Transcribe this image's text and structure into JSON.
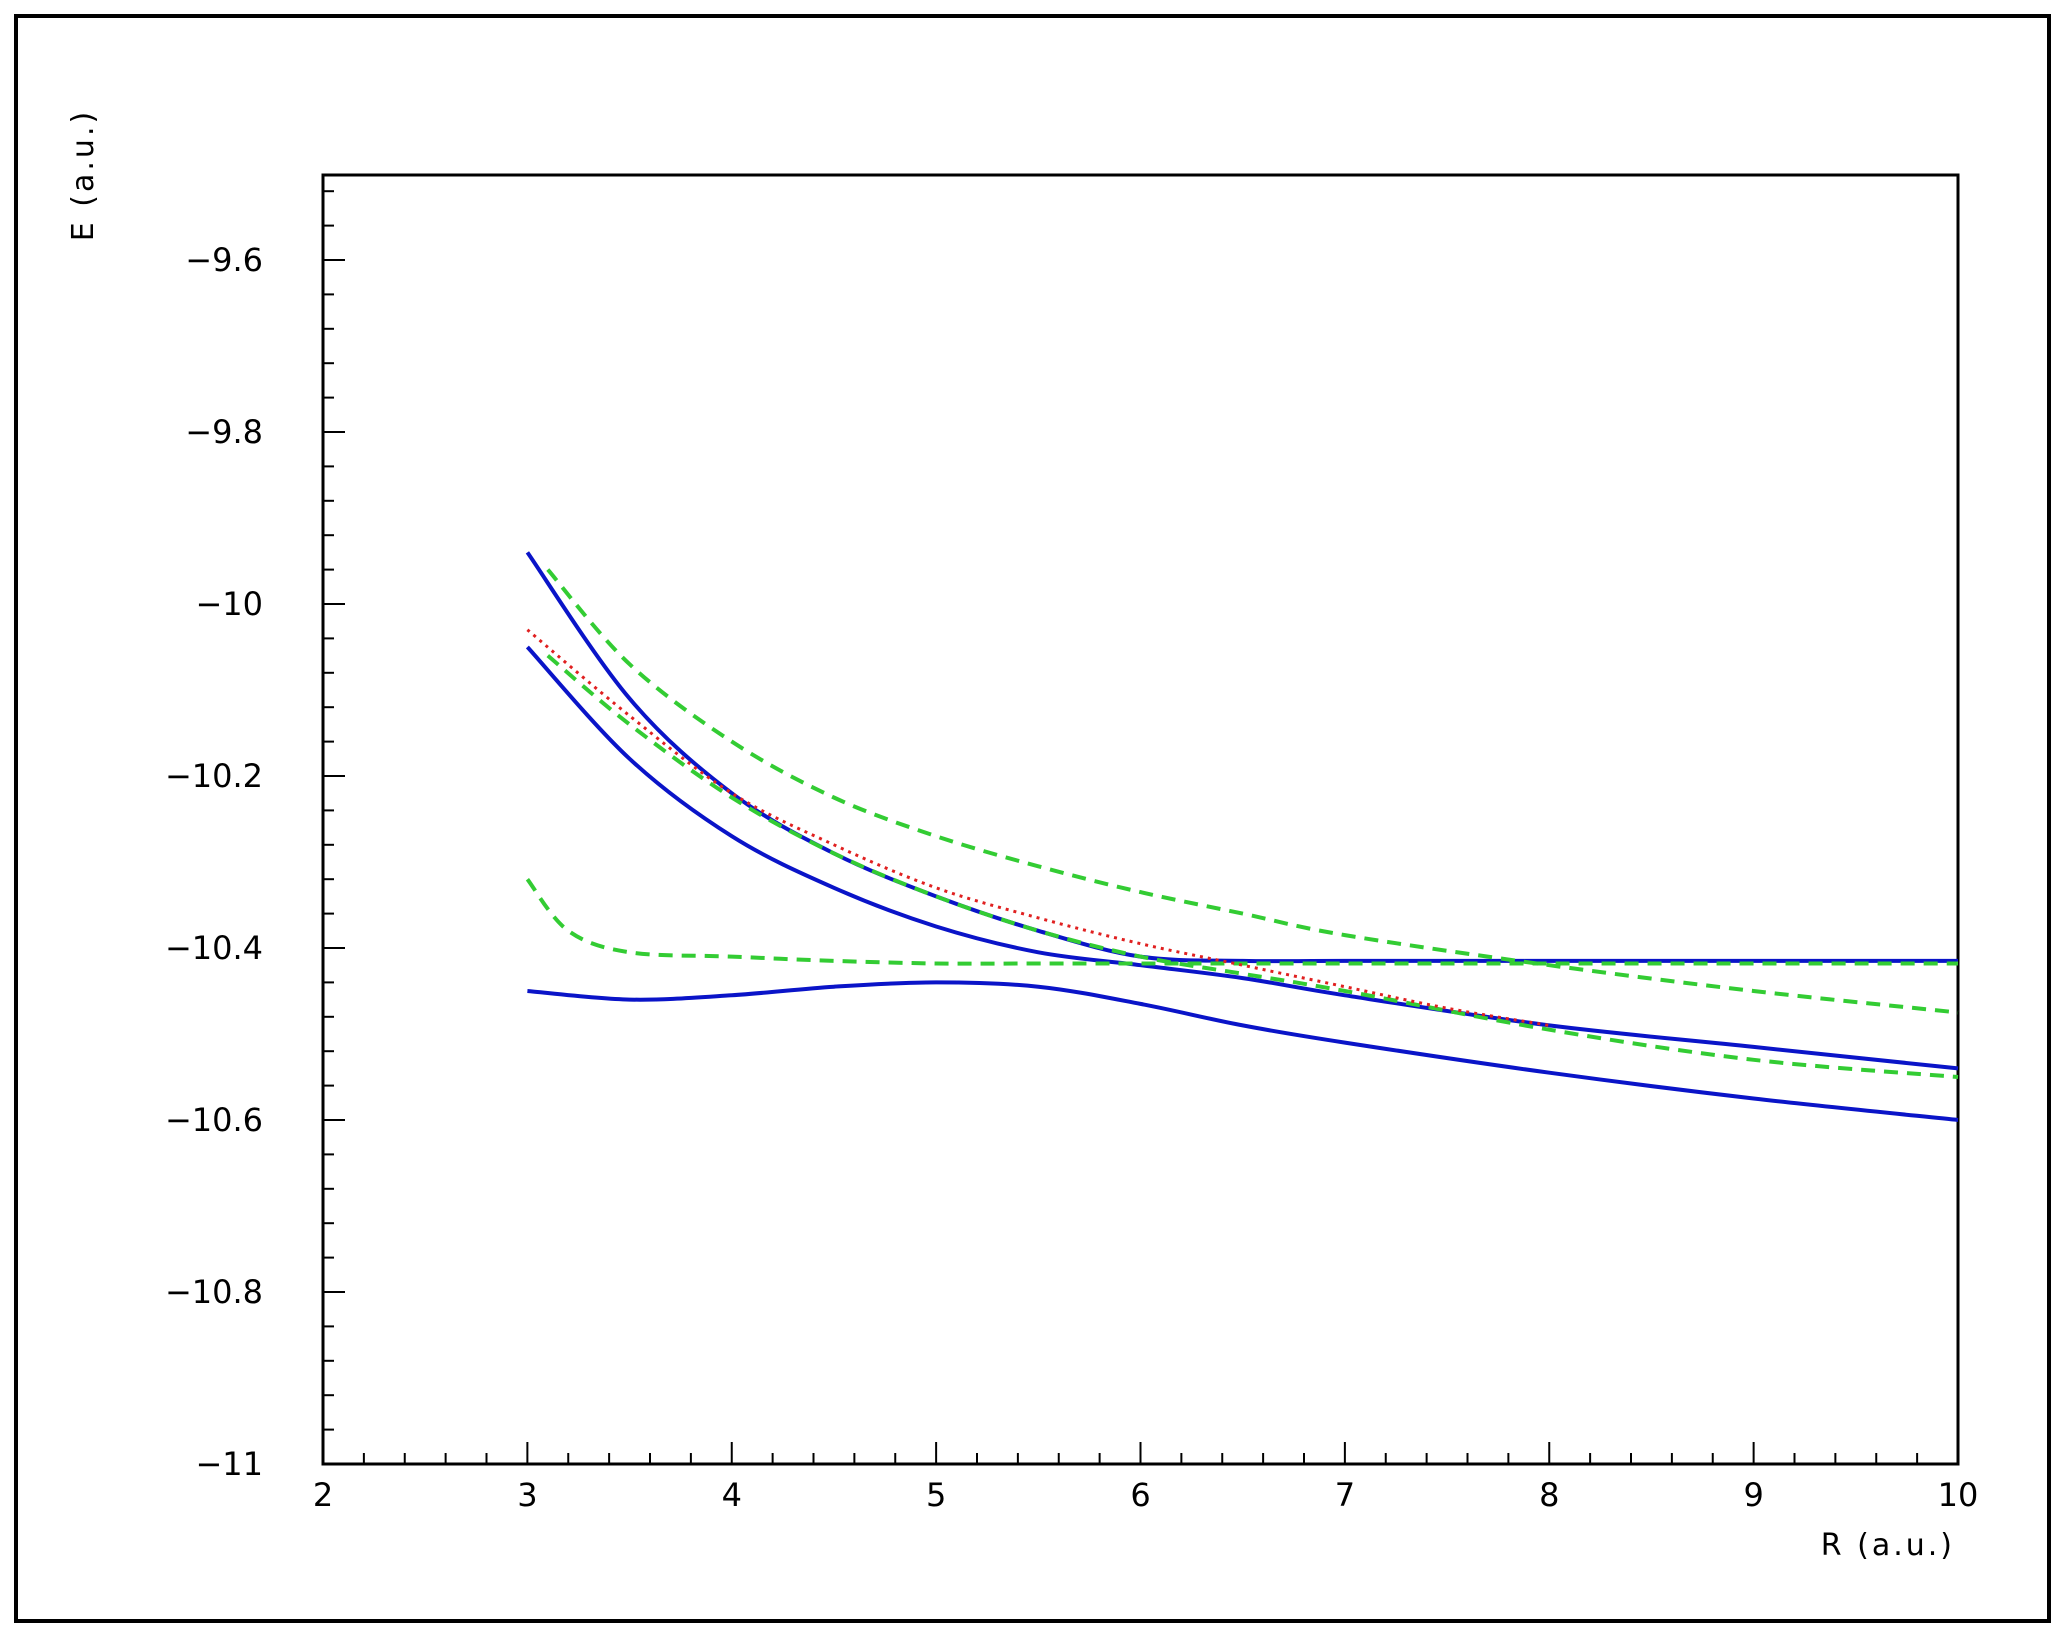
{
  "chart_data": {
    "type": "line",
    "title": "",
    "xlabel": "R (a.u.)",
    "ylabel": "E (a.u.)",
    "xlim": [
      2,
      10
    ],
    "ylim": [
      -11,
      -9.5
    ],
    "x_ticks": [
      2,
      3,
      4,
      5,
      6,
      7,
      8,
      9,
      10
    ],
    "x_tick_labels": [
      "2",
      "3",
      "4",
      "5",
      "6",
      "7",
      "8",
      "9",
      "10"
    ],
    "y_ticks": [
      -11,
      -10.8,
      -10.6,
      -10.4,
      -10.2,
      -10,
      -9.8,
      -9.6
    ],
    "y_tick_labels": [
      "−11",
      "−10.8",
      "−10.6",
      "−10.4",
      "−10.2",
      "−10",
      "−9.8",
      "−9.6"
    ],
    "grid": false,
    "series": [
      {
        "style": "solid",
        "color": "#0a14c8",
        "x": [
          3.0,
          3.5,
          4.0,
          4.5,
          5.0,
          5.5,
          6.0,
          6.5,
          7.0,
          8.0,
          9.0,
          10.0
        ],
        "y": [
          -10.45,
          -10.46,
          -10.455,
          -10.445,
          -10.44,
          -10.445,
          -10.465,
          -10.49,
          -10.51,
          -10.545,
          -10.575,
          -10.6
        ]
      },
      {
        "style": "solid",
        "color": "#0a14c8",
        "x": [
          3.0,
          3.5,
          4.0,
          4.5,
          5.0,
          5.5,
          6.0,
          6.5,
          7.0,
          8.0,
          9.0,
          10.0
        ],
        "y": [
          -10.05,
          -10.18,
          -10.27,
          -10.33,
          -10.375,
          -10.405,
          -10.42,
          -10.435,
          -10.455,
          -10.49,
          -10.515,
          -10.54
        ]
      },
      {
        "style": "solid",
        "color": "#0a14c8",
        "x": [
          3.0,
          3.5,
          4.0,
          4.5,
          5.0,
          5.5,
          6.0,
          6.5,
          7.0,
          8.0,
          9.0,
          10.0
        ],
        "y": [
          -9.94,
          -10.11,
          -10.22,
          -10.29,
          -10.34,
          -10.38,
          -10.41,
          -10.415,
          -10.415,
          -10.415,
          -10.415,
          -10.415
        ]
      },
      {
        "style": "dashed",
        "color": "#33cc33",
        "x": [
          3.0,
          3.2,
          3.5,
          4.0,
          4.5,
          5.0,
          5.5,
          6.0,
          7.0,
          8.0,
          9.0,
          10.0
        ],
        "y": [
          -10.32,
          -10.38,
          -10.405,
          -10.41,
          -10.415,
          -10.418,
          -10.418,
          -10.418,
          -10.418,
          -10.418,
          -10.418,
          -10.418
        ]
      },
      {
        "style": "dashed",
        "color": "#33cc33",
        "x": [
          3.1,
          3.5,
          4.0,
          4.5,
          5.0,
          5.5,
          6.0,
          6.5,
          7.0,
          8.0,
          9.0,
          10.0
        ],
        "y": [
          -10.06,
          -10.14,
          -10.225,
          -10.29,
          -10.34,
          -10.38,
          -10.41,
          -10.43,
          -10.45,
          -10.495,
          -10.53,
          -10.55
        ]
      },
      {
        "style": "dashed",
        "color": "#33cc33",
        "x": [
          3.1,
          3.5,
          4.0,
          4.5,
          5.0,
          5.5,
          6.0,
          6.5,
          7.0,
          8.0,
          9.0,
          10.0
        ],
        "y": [
          -9.96,
          -10.07,
          -10.16,
          -10.225,
          -10.27,
          -10.305,
          -10.335,
          -10.36,
          -10.385,
          -10.42,
          -10.45,
          -10.475
        ]
      },
      {
        "style": "dotted",
        "color": "#e02020",
        "x": [
          3.0,
          3.5,
          4.0,
          4.5,
          5.0,
          5.5,
          6.0,
          6.5,
          7.0,
          7.5,
          8.0
        ],
        "y": [
          -10.03,
          -10.13,
          -10.22,
          -10.28,
          -10.33,
          -10.365,
          -10.395,
          -10.42,
          -10.445,
          -10.47,
          -10.49
        ]
      }
    ]
  }
}
